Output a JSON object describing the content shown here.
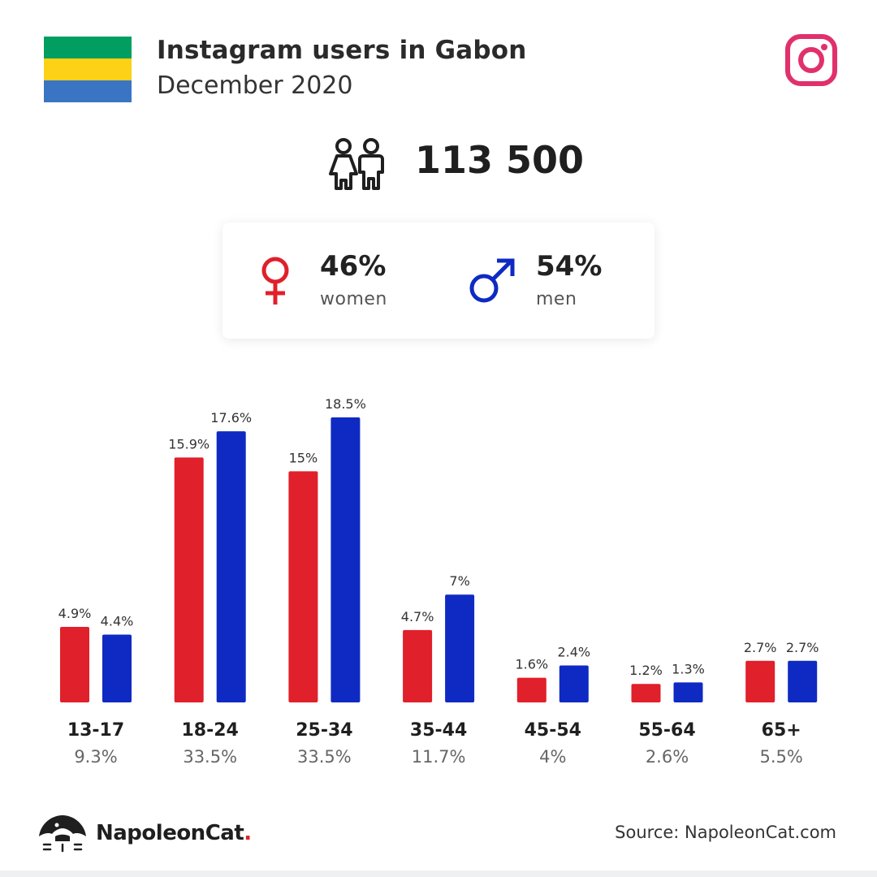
{
  "header": {
    "title": "Instagram users in Gabon",
    "subtitle": "December 2020",
    "flag_colors": [
      "#009e60",
      "#fcd116",
      "#3a75c4"
    ],
    "platform_icon": "instagram-icon",
    "platform_color": "#e1306c"
  },
  "total": {
    "icon": "people-icon",
    "value": "113 500"
  },
  "gender": {
    "women": {
      "icon": "female-symbol-icon",
      "percent": "46%",
      "label": "women",
      "color": "#e0202a"
    },
    "men": {
      "icon": "male-symbol-icon",
      "percent": "54%",
      "label": "men",
      "color": "#0f2ac3"
    }
  },
  "chart_data": {
    "type": "bar",
    "categories": [
      "13-17",
      "18-24",
      "25-34",
      "35-44",
      "45-54",
      "55-64",
      "65+"
    ],
    "category_totals": [
      "9.3%",
      "33.5%",
      "33.5%",
      "11.7%",
      "4%",
      "2.6%",
      "5.5%"
    ],
    "series": [
      {
        "values": [
          4.9,
          15.9,
          15,
          4.7,
          1.6,
          1.2,
          2.7
        ],
        "labels": [
          "4.9%",
          "15.9%",
          "15%",
          "4.7%",
          "1.6%",
          "1.2%",
          "2.7%"
        ],
        "color": "#e0202a"
      },
      {
        "values": [
          4.4,
          17.6,
          18.5,
          7,
          2.4,
          1.3,
          2.7
        ],
        "labels": [
          "4.4%",
          "17.6%",
          "18.5%",
          "7%",
          "2.4%",
          "1.3%",
          "2.7%"
        ],
        "color": "#0f2ac3"
      }
    ],
    "ylim": [
      0,
      18.5
    ],
    "grid": false
  },
  "footer": {
    "brand_name": "NapoleonCat",
    "brand_dot": ".",
    "source": "Source: NapoleonCat.com",
    "logo_icon": "napoleoncat-logo-icon"
  }
}
